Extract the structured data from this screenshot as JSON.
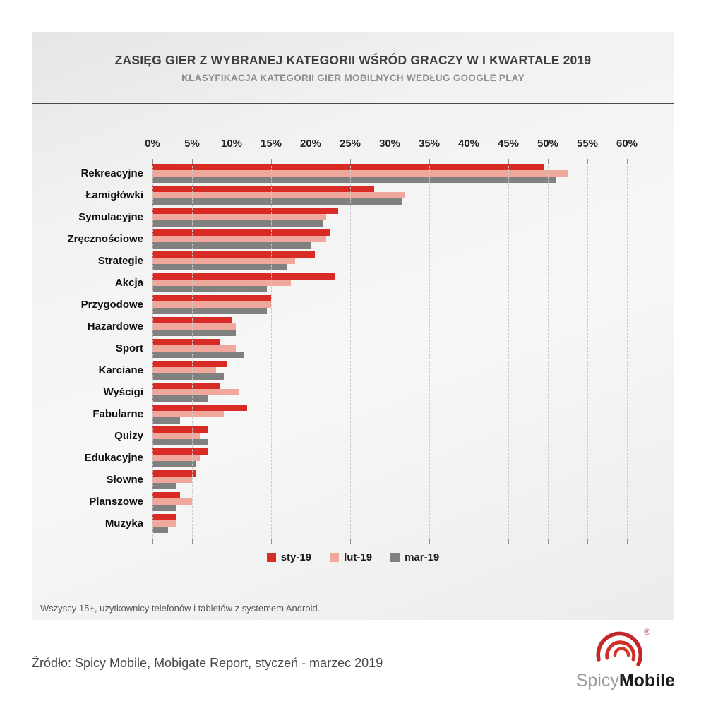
{
  "header": {
    "title": "ZASIĘG GIER Z WYBRANEJ KATEGORII WŚRÓD GRACZY W I KWARTALE 2019",
    "subtitle": "KLASYFIKACJA KATEGORII GIER MOBILNYCH WEDŁUG GOOGLE PLAY"
  },
  "chart_data": {
    "type": "bar",
    "orientation": "horizontal",
    "title": "ZASIĘG GIER Z WYBRANEJ KATEGORII WŚRÓD GRACZY W I KWARTALE 2019",
    "subtitle": "KLASYFIKACJA KATEGORII GIER MOBILNYCH WEDŁUG GOOGLE PLAY",
    "xlabel": "",
    "ylabel": "",
    "xlim": [
      0,
      60
    ],
    "x_tick_step": 5,
    "x_ticks": [
      "0%",
      "5%",
      "10%",
      "15%",
      "20%",
      "25%",
      "30%",
      "35%",
      "40%",
      "45%",
      "50%",
      "55%",
      "60%"
    ],
    "grid": "vertical-dashed",
    "legend_position": "bottom",
    "categories": [
      "Rekreacyjne",
      "Łamigłówki",
      "Symulacyjne",
      "Zręcznościowe",
      "Strategie",
      "Akcja",
      "Przygodowe",
      "Hazardowe",
      "Sport",
      "Karciane",
      "Wyścigi",
      "Fabularne",
      "Quizy",
      "Edukacyjne",
      "Słowne",
      "Planszowe",
      "Muzyka"
    ],
    "series": [
      {
        "name": "sty-19",
        "color": "#d92b26",
        "values": [
          49.5,
          28,
          23.5,
          22.5,
          20.5,
          23,
          15,
          10,
          8.5,
          9.5,
          8.5,
          12,
          7,
          7,
          5.5,
          3.5,
          3
        ]
      },
      {
        "name": "lut-19",
        "color": "#f0a89c",
        "values": [
          52.5,
          32,
          22,
          22,
          18,
          17.5,
          15,
          10.5,
          10.5,
          8,
          11,
          9,
          6,
          6,
          5,
          5,
          3
        ]
      },
      {
        "name": "mar-19",
        "color": "#808080",
        "values": [
          51,
          31.5,
          21.5,
          20,
          17,
          14.5,
          14.5,
          10.5,
          11.5,
          9,
          7,
          3.5,
          7,
          5.5,
          3,
          3,
          2
        ]
      }
    ]
  },
  "note": "Wszyscy 15+, użytkownicy telefonów i tabletów z systemem Android.",
  "source": "Źródło: Spicy Mobile, Mobigate Report, styczeń - marzec 2019",
  "logo": {
    "part1": "Spicy",
    "part2": "Mobile",
    "registered": "®",
    "accent": "#c4272b"
  }
}
